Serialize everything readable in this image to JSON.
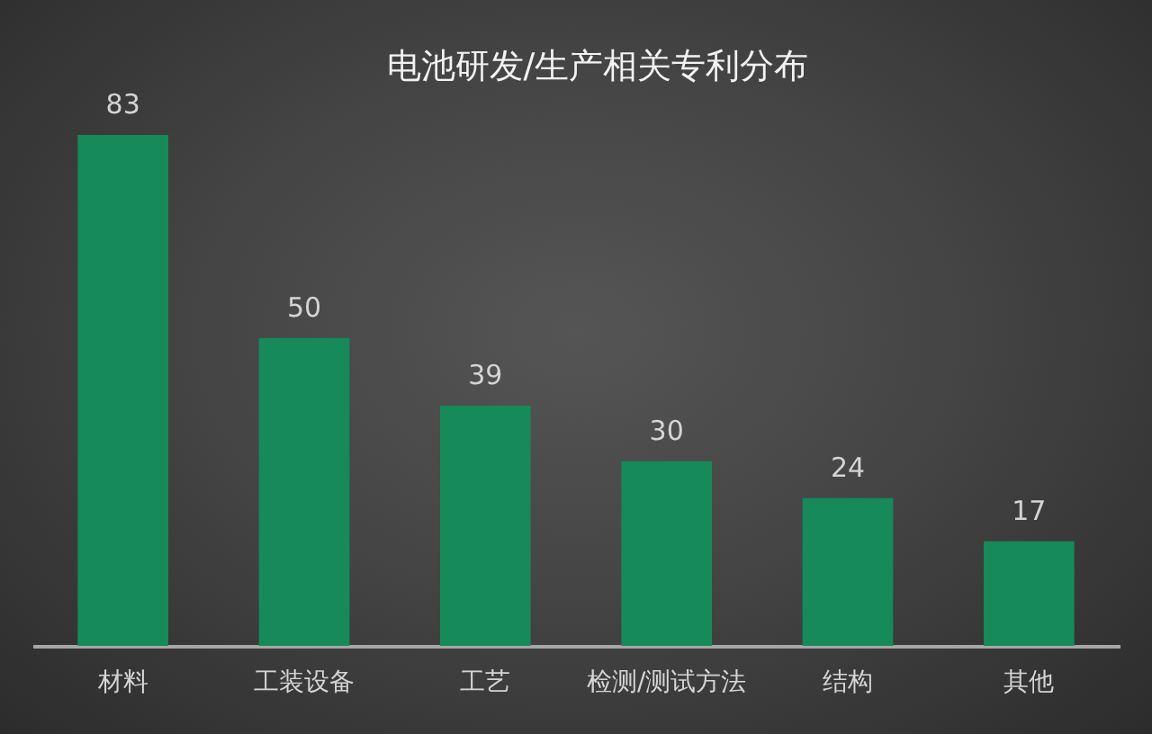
{
  "chart_data": {
    "type": "bar",
    "title": "电池研发/生产相关专利分布",
    "categories": [
      "材料",
      "工装设备",
      "工艺",
      "检测/测试方法",
      "结构",
      "其他"
    ],
    "values": [
      83,
      50,
      39,
      30,
      24,
      17
    ],
    "color": "#168a58",
    "data_labels": true
  }
}
